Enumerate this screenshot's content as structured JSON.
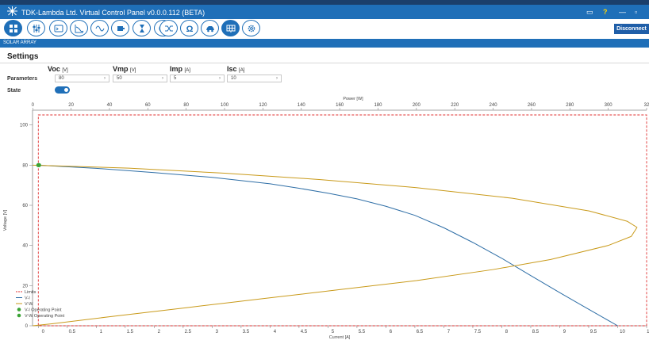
{
  "window": {
    "title": "TDK-Lambda Ltd. Virtual Control Panel v0.0.0.112 (BETA)",
    "controls": {
      "monitor": "▭",
      "help": "?",
      "minimize": "—",
      "restore": "▫"
    }
  },
  "toolbar": {
    "buttons": [
      {
        "name": "dashboard",
        "icon": "grid-icon",
        "filled": true
      },
      {
        "name": "sliders",
        "icon": "sliders-icon",
        "filled": false
      },
      {
        "name": "terminal",
        "icon": "terminal-icon",
        "filled": false
      },
      {
        "name": "graph",
        "icon": "graph-icon",
        "filled": false
      },
      {
        "name": "waveform",
        "icon": "sine-icon",
        "filled": false
      },
      {
        "name": "battery",
        "icon": "battery-icon",
        "filled": false
      },
      {
        "name": "timer",
        "icon": "hourglass-icon",
        "filled": false
      },
      {
        "name": "network",
        "icon": "globe-icon",
        "filled": false
      },
      {
        "name": "shuffle",
        "icon": "shuffle-icon",
        "filled": false
      },
      {
        "name": "resistance",
        "icon": "omega-icon",
        "filled": false
      },
      {
        "name": "car",
        "icon": "car-icon",
        "filled": false
      },
      {
        "name": "solar",
        "icon": "solar-panel-icon",
        "filled": true
      },
      {
        "name": "settings",
        "icon": "gear-icon",
        "filled": false
      }
    ],
    "disconnect_label": "Disconnect"
  },
  "section": {
    "title": "SOLAR ARRAY"
  },
  "settings": {
    "title": "Settings",
    "columns": [
      {
        "label": "Voc",
        "unit": "[V]",
        "value": "80"
      },
      {
        "label": "Vmp",
        "unit": "[V]",
        "value": "50"
      },
      {
        "label": "Imp",
        "unit": "[A]",
        "value": "5"
      },
      {
        "label": "Isc",
        "unit": "[A]",
        "value": "10"
      }
    ],
    "parameters_label": "Parameters",
    "state_label": "State",
    "state_on": true
  },
  "chart_data": {
    "type": "line",
    "xlabel": "Current [A]",
    "x2label": "Power [W]",
    "ylabel": "Voltage [V]",
    "xlim": [
      -0.1,
      10.5
    ],
    "x2lim": [
      -0.1,
      320
    ],
    "ylim": [
      0,
      105
    ],
    "x_ticks": [
      "0",
      "0.5",
      "1",
      "1.5",
      "2",
      "2.5",
      "3",
      "3.5",
      "4",
      "4.5",
      "5",
      "5.5",
      "6",
      "6.5",
      "7",
      "7.5",
      "8",
      "8.5",
      "9",
      "9.5",
      "10",
      "10.5"
    ],
    "x2_ticks": [
      "0",
      "20",
      "40",
      "60",
      "80",
      "100",
      "120",
      "140",
      "160",
      "180",
      "200",
      "220",
      "240",
      "260",
      "280",
      "300",
      "32"
    ],
    "y_ticks": [
      "0",
      "20",
      "40",
      "60",
      "80",
      "100"
    ],
    "limits": {
      "current": [
        0,
        10.5
      ],
      "voltage": [
        0,
        105
      ],
      "power": [
        0,
        320
      ]
    },
    "series": [
      {
        "name": "Limits",
        "color": "#e03030",
        "style": "dashed"
      },
      {
        "name": "V-I",
        "color": "#2e6ea6",
        "points": [
          [
            0,
            80
          ],
          [
            1,
            78.4
          ],
          [
            2,
            76.3
          ],
          [
            3,
            73.9
          ],
          [
            4,
            70.7
          ],
          [
            4.5,
            68.5
          ],
          [
            5,
            66
          ],
          [
            5.5,
            63.2
          ],
          [
            6,
            59.5
          ],
          [
            6.5,
            55
          ],
          [
            7,
            48.8
          ],
          [
            7.5,
            41.5
          ],
          [
            8,
            33.6
          ],
          [
            8.5,
            25
          ],
          [
            9,
            16.5
          ],
          [
            9.5,
            8.2
          ],
          [
            10,
            0
          ]
        ]
      },
      {
        "name": "V-W",
        "color": "#c99a1a",
        "points": [
          [
            0,
            80
          ],
          [
            50,
            78.5
          ],
          [
            100,
            76
          ],
          [
            150,
            72.8
          ],
          [
            200,
            68.8
          ],
          [
            250,
            63.5
          ],
          [
            290,
            57.2
          ],
          [
            310,
            52
          ],
          [
            315,
            49
          ],
          [
            312,
            44.5
          ],
          [
            300,
            40
          ],
          [
            270,
            33
          ],
          [
            240,
            28
          ],
          [
            200,
            22.5
          ],
          [
            160,
            18
          ],
          [
            120,
            13.5
          ],
          [
            80,
            9
          ],
          [
            40,
            4.5
          ],
          [
            10,
            1
          ],
          [
            0,
            0
          ]
        ]
      },
      {
        "name": "V-I Operating Point",
        "color": "#3aa335",
        "points": [
          [
            0,
            80
          ]
        ]
      },
      {
        "name": "V-W Operating Point",
        "color": "#3aa335",
        "points": [
          [
            0,
            80
          ]
        ]
      }
    ]
  }
}
